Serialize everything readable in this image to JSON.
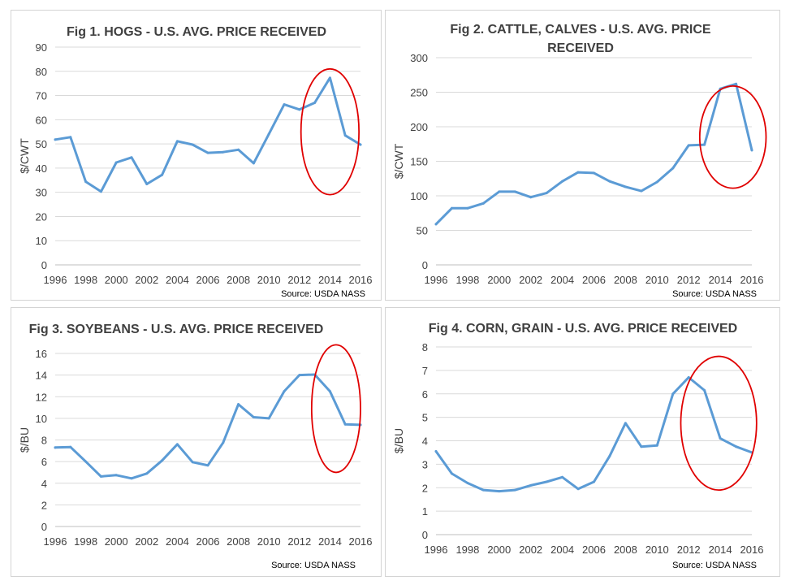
{
  "chart_data": [
    {
      "type": "line",
      "title": [
        "Fig 1. HOGS -  U.S. AVG. PRICE RECEIVED"
      ],
      "ylabel": "$/CWT",
      "source": "Source: USDA NASS",
      "ylim": [
        0,
        90
      ],
      "yticks": [
        "0",
        "10",
        "20",
        "30",
        "40",
        "50",
        "60",
        "70",
        "80",
        "90"
      ],
      "xticks": [
        "1996",
        "1998",
        "2000",
        "2002",
        "2004",
        "2006",
        "2008",
        "2010",
        "2012",
        "2014",
        "2016"
      ],
      "x": [
        1996,
        1997,
        1998,
        1999,
        2000,
        2001,
        2002,
        2003,
        2004,
        2005,
        2006,
        2007,
        2008,
        2009,
        2010,
        2011,
        2012,
        2013,
        2014,
        2015,
        2016
      ],
      "series": [
        {
          "values": [
            51.8,
            52.8,
            34.4,
            30.3,
            42.3,
            44.4,
            33.4,
            37.2,
            51.1,
            49.7,
            46.3,
            46.6,
            47.6,
            42.0,
            54.1,
            66.3,
            64.2,
            67.0,
            77.3,
            53.5,
            49.7
          ]
        }
      ],
      "highlight": {
        "x": 2014,
        "y": 55,
        "rx": 1.9,
        "ry": 26
      },
      "legend": "none",
      "grid": true
    },
    {
      "type": "line",
      "title": [
        "Fig 2. CATTLE, CALVES - U.S. AVG. PRICE",
        "RECEIVED"
      ],
      "ylabel": "$/CWT",
      "source": "Source: USDA NASS",
      "ylim": [
        0,
        300
      ],
      "yticks": [
        "0",
        "50",
        "100",
        "150",
        "200",
        "250",
        "300"
      ],
      "xticks": [
        "1996",
        "1998",
        "2000",
        "2002",
        "2004",
        "2006",
        "2008",
        "2010",
        "2012",
        "2014",
        "2016"
      ],
      "x": [
        1996,
        1997,
        1998,
        1999,
        2000,
        2001,
        2002,
        2003,
        2004,
        2005,
        2006,
        2007,
        2008,
        2009,
        2010,
        2011,
        2012,
        2013,
        2014,
        2015,
        2016
      ],
      "series": [
        {
          "values": [
            59,
            82,
            82,
            89,
            106,
            106,
            98,
            104,
            121,
            134,
            133,
            121,
            113,
            107,
            120,
            140,
            173,
            174,
            255,
            262,
            166
          ]
        }
      ],
      "highlight": {
        "x": 2014.8,
        "y": 185,
        "rx": 2.1,
        "ry": 74
      },
      "legend": "none",
      "grid": true
    },
    {
      "type": "line",
      "title": [
        "Fig 3. SOYBEANS - U.S. AVG. PRICE RECEIVED"
      ],
      "ylabel": "$/BU",
      "source": "Source: USDA NASS",
      "ylim": [
        0,
        16
      ],
      "yticks": [
        "0",
        "2",
        "4",
        "6",
        "8",
        "10",
        "12",
        "14",
        "16"
      ],
      "xticks": [
        "1996",
        "1998",
        "2000",
        "2002",
        "2004",
        "2006",
        "2008",
        "2010",
        "2012",
        "2014",
        "2016"
      ],
      "x": [
        1996,
        1997,
        1998,
        1999,
        2000,
        2001,
        2002,
        2003,
        2004,
        2005,
        2006,
        2007,
        2008,
        2009,
        2010,
        2011,
        2012,
        2013,
        2014,
        2015,
        2016
      ],
      "series": [
        {
          "values": [
            7.3,
            7.35,
            6.0,
            4.63,
            4.75,
            4.45,
            4.9,
            6.1,
            7.6,
            5.95,
            5.65,
            7.75,
            11.3,
            10.1,
            10.0,
            12.5,
            14.0,
            14.05,
            12.5,
            9.45,
            9.4
          ]
        }
      ],
      "highlight": {
        "x": 2014.4,
        "y": 10.9,
        "rx": 1.6,
        "ry": 5.9
      },
      "legend": "none",
      "grid": true
    },
    {
      "type": "line",
      "title": [
        "Fig 4. CORN, GRAIN - U.S. AVG. PRICE RECEIVED"
      ],
      "ylabel": "$/BU",
      "source": "Source: USDA NASS",
      "ylim": [
        0,
        8
      ],
      "yticks": [
        "0",
        "1",
        "2",
        "3",
        "4",
        "5",
        "6",
        "7",
        "8"
      ],
      "xticks": [
        "1996",
        "1998",
        "2000",
        "2002",
        "2004",
        "2006",
        "2008",
        "2010",
        "2012",
        "2014",
        "2016"
      ],
      "x": [
        1996,
        1997,
        1998,
        1999,
        2000,
        2001,
        2002,
        2003,
        2004,
        2005,
        2006,
        2007,
        2008,
        2009,
        2010,
        2011,
        2012,
        2013,
        2014,
        2015,
        2016
      ],
      "series": [
        {
          "values": [
            3.55,
            2.6,
            2.2,
            1.9,
            1.85,
            1.9,
            2.1,
            2.25,
            2.45,
            1.95,
            2.25,
            3.35,
            4.75,
            3.75,
            3.8,
            6.0,
            6.7,
            6.15,
            4.1,
            3.75,
            3.5
          ]
        }
      ],
      "highlight": {
        "x": 2013.9,
        "y": 4.75,
        "rx": 2.4,
        "ry": 2.85
      },
      "legend": "none",
      "grid": true
    }
  ],
  "colors": {
    "series": "#5b9bd5",
    "highlight": "#e00000"
  }
}
